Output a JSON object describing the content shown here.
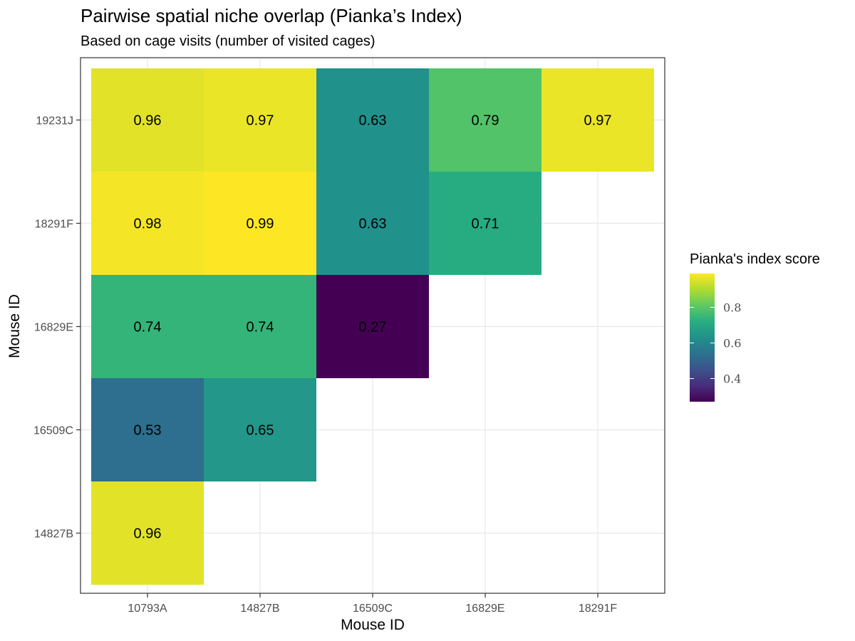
{
  "chart_data": {
    "type": "heatmap",
    "title": "Pairwise spatial niche overlap (Pianka’s Index)",
    "subtitle": "Based on cage visits (number of visited cages)",
    "xlabel": "Mouse ID",
    "ylabel": "Mouse ID",
    "x_categories": [
      "10793A",
      "14827B",
      "16509C",
      "16829E",
      "18291F"
    ],
    "y_categories": [
      "14827B",
      "16509C",
      "16829E",
      "18291F",
      "19231J"
    ],
    "cells": [
      {
        "x": "10793A",
        "y": "19231J",
        "value": 0.96
      },
      {
        "x": "14827B",
        "y": "19231J",
        "value": 0.97
      },
      {
        "x": "16509C",
        "y": "19231J",
        "value": 0.63
      },
      {
        "x": "16829E",
        "y": "19231J",
        "value": 0.79
      },
      {
        "x": "18291F",
        "y": "19231J",
        "value": 0.97
      },
      {
        "x": "10793A",
        "y": "18291F",
        "value": 0.98
      },
      {
        "x": "14827B",
        "y": "18291F",
        "value": 0.99
      },
      {
        "x": "16509C",
        "y": "18291F",
        "value": 0.63
      },
      {
        "x": "16829E",
        "y": "18291F",
        "value": 0.71
      },
      {
        "x": "10793A",
        "y": "16829E",
        "value": 0.74
      },
      {
        "x": "14827B",
        "y": "16829E",
        "value": 0.74
      },
      {
        "x": "16509C",
        "y": "16829E",
        "value": 0.27
      },
      {
        "x": "10793A",
        "y": "16509C",
        "value": 0.53
      },
      {
        "x": "14827B",
        "y": "16509C",
        "value": 0.65
      },
      {
        "x": "10793A",
        "y": "14827B",
        "value": 0.96
      }
    ],
    "legend": {
      "title": "Pianka's index score",
      "position": "right",
      "ticks": [
        0.4,
        0.6,
        0.8
      ],
      "range": [
        0.27,
        0.99
      ],
      "colormap": "viridis"
    },
    "grid": true
  }
}
